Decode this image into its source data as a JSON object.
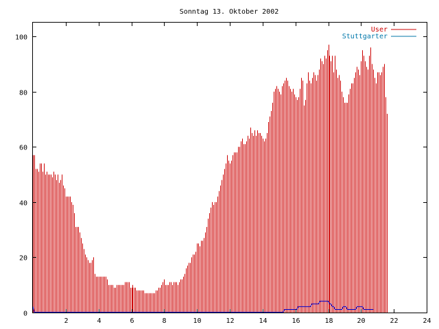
{
  "chart_data": {
    "type": "bar",
    "title": "Sonntag 13. Oktober 2002",
    "xlabel": "",
    "ylabel": "",
    "xlim": [
      0,
      24
    ],
    "ylim": [
      0,
      105
    ],
    "x_ticks": [
      2,
      4,
      6,
      8,
      10,
      12,
      14,
      16,
      18,
      20,
      22,
      24
    ],
    "y_ticks": [
      0,
      20,
      40,
      60,
      80,
      100
    ],
    "grid": false,
    "legend_position": "top-right",
    "bin_minutes": 5,
    "series": [
      {
        "name": "User",
        "style": "impulses",
        "color": "#cc0000",
        "values": [
          57,
          57,
          52,
          52,
          51,
          54,
          54,
          51,
          54,
          50,
          51,
          50,
          50,
          50,
          49,
          51,
          50,
          48,
          50,
          47,
          48,
          50,
          46,
          45,
          42,
          42,
          42,
          42,
          40,
          39,
          36,
          31,
          31,
          31,
          29,
          27,
          25,
          23,
          21,
          20,
          19,
          18,
          18,
          19,
          20,
          14,
          13,
          13,
          13,
          13,
          13,
          13,
          13,
          13,
          12,
          10,
          10,
          10,
          10,
          9,
          9,
          10,
          10,
          10,
          10,
          10,
          10,
          11,
          11,
          11,
          11,
          9,
          9,
          10,
          9,
          9,
          8,
          8,
          8,
          8,
          8,
          8,
          7,
          7,
          7,
          7,
          7,
          7,
          7,
          7,
          8,
          8,
          9,
          9,
          10,
          11,
          12,
          10,
          10,
          10,
          11,
          11,
          10,
          11,
          11,
          11,
          10,
          11,
          12,
          12,
          13,
          14,
          16,
          17,
          18,
          18,
          20,
          21,
          21,
          22,
          25,
          25,
          24,
          26,
          26,
          27,
          29,
          31,
          34,
          36,
          38,
          40,
          39,
          40,
          40,
          42,
          44,
          46,
          48,
          50,
          52,
          54,
          57,
          55,
          54,
          55,
          57,
          58,
          58,
          58,
          60,
          60,
          62,
          63,
          61,
          61,
          62,
          64,
          63,
          67,
          65,
          64,
          66,
          64,
          66,
          65,
          65,
          64,
          63,
          62,
          63,
          65,
          69,
          71,
          73,
          76,
          80,
          81,
          82,
          81,
          80,
          79,
          82,
          83,
          84,
          85,
          84,
          82,
          81,
          80,
          81,
          79,
          78,
          77,
          78,
          81,
          85,
          84,
          75,
          77,
          83,
          87,
          84,
          83,
          85,
          87,
          86,
          84,
          86,
          88,
          92,
          91,
          90,
          93,
          92,
          95,
          97,
          93,
          91,
          93,
          87,
          93,
          88,
          85,
          86,
          84,
          80,
          78,
          76,
          76,
          76,
          79,
          81,
          83,
          83,
          85,
          87,
          89,
          88,
          86,
          91,
          95,
          93,
          91,
          89,
          88,
          93,
          96,
          90,
          88,
          85,
          83,
          87,
          87,
          86,
          87,
          89,
          90,
          78,
          72
        ]
      },
      {
        "name": "Stuttgarter",
        "style": "lines",
        "color": "#0000cc",
        "values": [
          2,
          0,
          0,
          0,
          0,
          0,
          0,
          0,
          0,
          0,
          0,
          0,
          0,
          0,
          0,
          0,
          0,
          0,
          0,
          0,
          0,
          0,
          0,
          0,
          0,
          0,
          0,
          0,
          0,
          0,
          0,
          0,
          0,
          0,
          0,
          0,
          0,
          0,
          0,
          0,
          0,
          0,
          0,
          0,
          0,
          0,
          0,
          0,
          0,
          0,
          0,
          0,
          0,
          0,
          0,
          0,
          0,
          0,
          0,
          0,
          0,
          0,
          0,
          0,
          0,
          0,
          0,
          0,
          0,
          0,
          0,
          0,
          0,
          0,
          0,
          0,
          0,
          0,
          0,
          0,
          0,
          0,
          0,
          0,
          0,
          0,
          0,
          0,
          0,
          0,
          0,
          0,
          0,
          0,
          0,
          0,
          0,
          0,
          0,
          0,
          0,
          0,
          0,
          0,
          0,
          0,
          0,
          0,
          0,
          0,
          0,
          0,
          0,
          0,
          0,
          0,
          0,
          0,
          0,
          0,
          0,
          0,
          0,
          0,
          0,
          0,
          0,
          0,
          0,
          0,
          0,
          0,
          0,
          0,
          0,
          0,
          0,
          0,
          0,
          0,
          0,
          0,
          0,
          0,
          0,
          0,
          0,
          0,
          0,
          0,
          0,
          0,
          0,
          0,
          0,
          0,
          0,
          0,
          0,
          0,
          0,
          0,
          0,
          0,
          0,
          0,
          0,
          0,
          0,
          0,
          0,
          0,
          0,
          0,
          0,
          0,
          0,
          0,
          0,
          0,
          0,
          0,
          0,
          0,
          1,
          1,
          1,
          1,
          1,
          1,
          1,
          1,
          1,
          1,
          2,
          2,
          2,
          2,
          2,
          2,
          2,
          2,
          2,
          2,
          3,
          3,
          3,
          3,
          3,
          3,
          4,
          4,
          4,
          4,
          4,
          4,
          4,
          3,
          3,
          2,
          2,
          1,
          1,
          1,
          1,
          1,
          1,
          2,
          2,
          2,
          1,
          1,
          1,
          1,
          1,
          1,
          1,
          2,
          2,
          2,
          2,
          2,
          1,
          1,
          1,
          1,
          1,
          1,
          1,
          1
        ]
      }
    ]
  }
}
